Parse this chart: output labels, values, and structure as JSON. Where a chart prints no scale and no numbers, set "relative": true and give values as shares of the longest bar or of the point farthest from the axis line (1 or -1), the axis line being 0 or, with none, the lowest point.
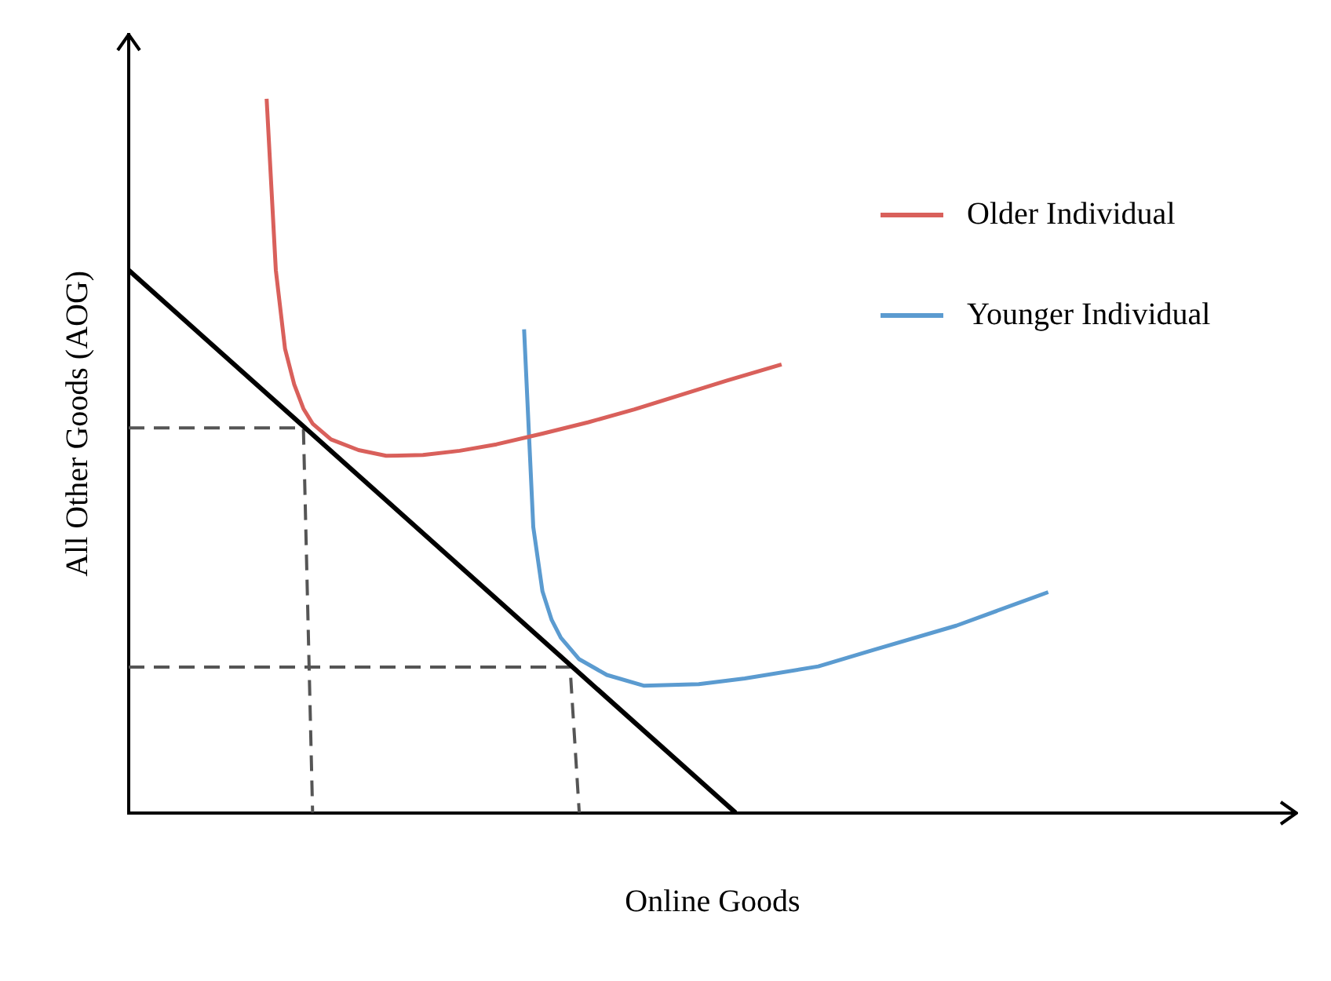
{
  "chart_data": {
    "type": "line",
    "relative": true,
    "xlabel": "Online Goods",
    "ylabel": "All Other Goods (AOG)",
    "legend": "top right",
    "categories": [
      null,
      null,
      null,
      null,
      null,
      null,
      null,
      null,
      null,
      null,
      null,
      null,
      null,
      null,
      null,
      null,
      null,
      null,
      null,
      null,
      null,
      null,
      null,
      null,
      null,
      null,
      null,
      null,
      null,
      null,
      null,
      null,
      null,
      null,
      null,
      null,
      null,
      null,
      null,
      null,
      null,
      null,
      null,
      null,
      null,
      null,
      null,
      null,
      null,
      null,
      null,
      null,
      null,
      null,
      null,
      null,
      null,
      null,
      null,
      null,
      null,
      null,
      null,
      null,
      null,
      null,
      null,
      null,
      null,
      null,
      null,
      null,
      null,
      null,
      null,
      null,
      null,
      null,
      null,
      null,
      null,
      null,
      null,
      null,
      null,
      null,
      null,
      null,
      null,
      null,
      null,
      null,
      null,
      null,
      null,
      null,
      null,
      null,
      null,
      null,
      null,
      null,
      null,
      null,
      null,
      null,
      null,
      null,
      null,
      null,
      null,
      null,
      null,
      null,
      null,
      null,
      null,
      null,
      null,
      null,
      null,
      null,
      null,
      null,
      null,
      null,
      null,
      null
    ],
    "series": [
      {
        "name": "Older Individual",
        "color": "#d9605b",
        "values": [
          null,
          null,
          null,
          null,
          null,
          null,
          null,
          null,
          null,
          null,
          null,
          null,
          null,
          null,
          null,
          1.0,
          0.76,
          0.65,
          0.6,
          0.566,
          0.545,
          null,
          0.523,
          null,
          null,
          0.508,
          null,
          null,
          0.5,
          null,
          null,
          null,
          0.501,
          null,
          null,
          null,
          0.507,
          null,
          null,
          null,
          0.516,
          null,
          null,
          null,
          null,
          0.531,
          null,
          null,
          null,
          null,
          0.547,
          null,
          null,
          null,
          null,
          0.565,
          null,
          null,
          null,
          null,
          0.585,
          null,
          null,
          null,
          null,
          0.605,
          null,
          null,
          null,
          null,
          null,
          0.628,
          null,
          null,
          null,
          null,
          null,
          null,
          null,
          null,
          null,
          null,
          null,
          null,
          null,
          null,
          null,
          null,
          null,
          null,
          null,
          null,
          null,
          null,
          null,
          null,
          null,
          null,
          null,
          null,
          null,
          null,
          null,
          null,
          null,
          null,
          null,
          null,
          null,
          null,
          null,
          null,
          null,
          null,
          null,
          null,
          null,
          null,
          null,
          null,
          null,
          null,
          null,
          null,
          null,
          null,
          null,
          null
        ]
      },
      {
        "name": "Younger Individual",
        "color": "#5b9bd0",
        "values": [
          null,
          null,
          null,
          null,
          null,
          null,
          null,
          null,
          null,
          null,
          null,
          null,
          null,
          null,
          null,
          null,
          null,
          null,
          null,
          null,
          null,
          null,
          null,
          null,
          null,
          null,
          null,
          null,
          null,
          null,
          null,
          null,
          null,
          null,
          null,
          null,
          null,
          null,
          null,
          null,
          null,
          null,
          null,
          0.677,
          0.4,
          0.31,
          0.27,
          0.245,
          null,
          0.215,
          null,
          null,
          0.193,
          null,
          null,
          null,
          0.178,
          null,
          null,
          null,
          null,
          null,
          0.18,
          null,
          null,
          null,
          null,
          0.188,
          null,
          null,
          null,
          null,
          null,
          null,
          null,
          0.205,
          null,
          null,
          null,
          null,
          null,
          0.228,
          null,
          null,
          null,
          null,
          null,
          null,
          null,
          null,
          0.262,
          null,
          null,
          null,
          null,
          null,
          null,
          null,
          null,
          null,
          0.309,
          null,
          null,
          null,
          null,
          null,
          null,
          null,
          null,
          null,
          null,
          null,
          null,
          null,
          null,
          null,
          null,
          null,
          null,
          null,
          null,
          null,
          null,
          null,
          null,
          null,
          null,
          null
        ]
      },
      {
        "color": "#000000",
        "values": [
          0.76,
          null,
          null,
          null,
          null,
          null,
          null,
          null,
          null,
          null,
          null,
          null,
          null,
          null,
          null,
          null,
          null,
          null,
          null,
          null,
          null,
          null,
          null,
          null,
          null,
          null,
          null,
          null,
          null,
          null,
          null,
          null,
          null,
          null,
          null,
          null,
          null,
          null,
          null,
          null,
          null,
          null,
          null,
          null,
          null,
          null,
          null,
          null,
          null,
          null,
          null,
          null,
          null,
          null,
          null,
          null,
          null,
          null,
          null,
          null,
          null,
          null,
          null,
          null,
          null,
          null,
          0,
          null,
          null,
          null,
          null,
          null,
          null,
          null,
          null,
          null,
          null,
          null,
          null,
          null,
          null,
          null,
          null,
          null,
          null,
          null,
          null,
          null,
          null,
          null,
          null,
          null,
          null,
          null,
          null,
          null,
          null,
          null,
          null,
          null,
          null,
          null,
          null,
          null,
          null,
          null,
          null,
          null,
          null,
          null,
          null,
          null,
          null,
          null,
          null,
          null,
          null,
          null,
          null,
          null,
          null,
          null,
          null,
          null,
          null,
          null,
          null,
          null
        ]
      },
      {
        "color": "#555555",
        "line_style": "dashed",
        "values": [
          0.539,
          null,
          null,
          null,
          null,
          null,
          null,
          null,
          null,
          null,
          null,
          null,
          null,
          null,
          null,
          null,
          null,
          null,
          null,
          0.539,
          0,
          null,
          null,
          null,
          null,
          null,
          null,
          null,
          null,
          null,
          null,
          null,
          null,
          null,
          null,
          null,
          null,
          null,
          null,
          null,
          null,
          null,
          null,
          null,
          null,
          null,
          null,
          null,
          null,
          null,
          null,
          null,
          null,
          null,
          null,
          null,
          null,
          null,
          null,
          null,
          null,
          null,
          null,
          null,
          null,
          null,
          null,
          null,
          null,
          null,
          null,
          null,
          null,
          null,
          null,
          null,
          null,
          null,
          null,
          null,
          null,
          null,
          null,
          null,
          null,
          null,
          null,
          null,
          null,
          null,
          null,
          null,
          null,
          null,
          null,
          null,
          null,
          null,
          null,
          null,
          null,
          null,
          null,
          null,
          null,
          null,
          null,
          null,
          null,
          null,
          null,
          null,
          null,
          null,
          null,
          null,
          null,
          null,
          null,
          null,
          null,
          null,
          null,
          null,
          null,
          null,
          null,
          null
        ]
      },
      {
        "color": "#555555",
        "line_style": "dashed",
        "values": [
          0.204,
          null,
          null,
          null,
          null,
          null,
          null,
          null,
          null,
          null,
          null,
          null,
          null,
          null,
          null,
          null,
          null,
          null,
          null,
          null,
          null,
          null,
          null,
          null,
          null,
          null,
          null,
          null,
          null,
          null,
          null,
          null,
          null,
          null,
          null,
          null,
          null,
          null,
          null,
          null,
          null,
          null,
          null,
          null,
          null,
          null,
          null,
          null,
          0.204,
          0,
          null,
          null,
          null,
          null,
          null,
          null,
          null,
          null,
          null,
          null,
          null,
          null,
          null,
          null,
          null,
          null,
          null,
          null,
          null,
          null,
          null,
          null,
          null,
          null,
          null,
          null,
          null,
          null,
          null,
          null,
          null,
          null,
          null,
          null,
          null,
          null,
          null,
          null,
          null,
          null,
          null,
          null,
          null,
          null,
          null,
          null,
          null,
          null,
          null,
          null,
          null,
          null,
          null,
          null,
          null,
          null,
          null,
          null,
          null,
          null,
          null,
          null,
          null,
          null,
          null,
          null,
          null,
          null,
          null,
          null,
          null,
          null,
          null,
          null,
          null,
          null,
          null,
          null
        ]
      }
    ]
  }
}
